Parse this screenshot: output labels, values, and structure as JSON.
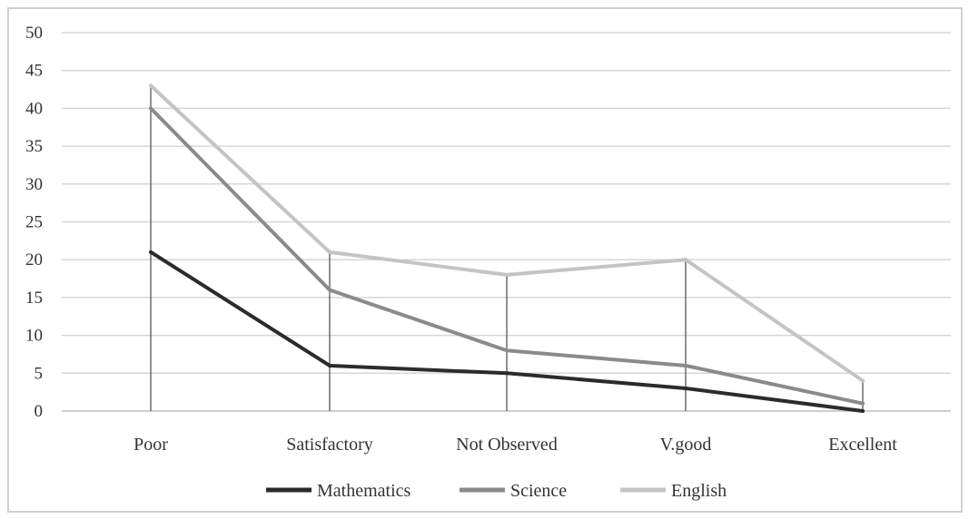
{
  "chart_data": {
    "type": "line",
    "title": "",
    "xlabel": "",
    "ylabel": "",
    "categories": [
      "Poor",
      "Satisfactory",
      "Not Observed",
      "V.good",
      "Excellent"
    ],
    "ylim": [
      0,
      50
    ],
    "yticks": [
      0,
      5,
      10,
      15,
      20,
      25,
      30,
      35,
      40,
      45,
      50
    ],
    "grid": true,
    "drop_lines": true,
    "legend_position": "bottom",
    "series": [
      {
        "name": "Mathematics",
        "values": [
          21,
          6,
          5,
          3,
          0
        ],
        "color": "#2b2b2b"
      },
      {
        "name": "Science",
        "values": [
          40,
          16,
          8,
          6,
          1
        ],
        "color": "#8a8a8a"
      },
      {
        "name": "English",
        "values": [
          43,
          21,
          18,
          20,
          4
        ],
        "color": "#c4c4c4"
      }
    ]
  }
}
